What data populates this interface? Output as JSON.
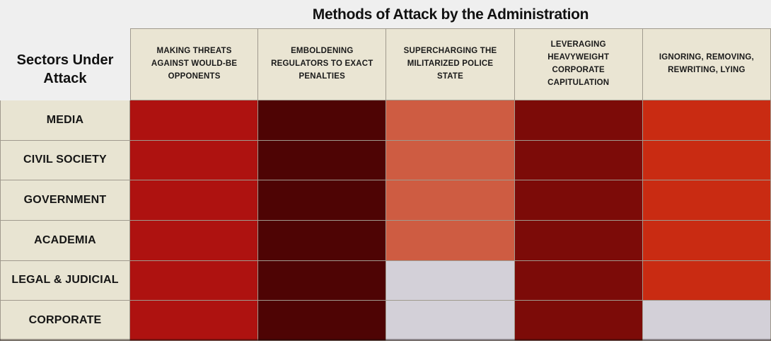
{
  "page": {
    "background": "#efefef"
  },
  "title": "Methods of Attack by the Administration",
  "corner_label": "Sectors Under Attack",
  "columns": [
    "MAKING THREATS AGAINST WOULD-BE OPPONENTS",
    "EMBOLDENING REGULATORS TO EXACT PENALTIES",
    "SUPERCHARGING THE MILITARIZED POLICE STATE",
    "LEVERAGING HEAVYWEIGHT CORPORATE CAPITULATION",
    "IGNORING, REMOVING, REWRITING, LYING"
  ],
  "rows": [
    "MEDIA",
    "CIVIL SOCIETY",
    "GOVERNMENT",
    "ACADEMIA",
    "LEGAL & JUDICIAL",
    "CORPORATE"
  ],
  "palette": {
    "bright_red": "#ae1210",
    "darkest_red": "#4e0404",
    "salmon": "#ce5c42",
    "dark_red": "#7c0b08",
    "orange_red": "#c92b12",
    "lavender": "#d3d0d8",
    "header_bg": "#eae5d3",
    "label_bg": "#e8e4d2",
    "border": "#a09a8e"
  },
  "chart_data": {
    "type": "heatmap",
    "title": "Methods of Attack by the Administration",
    "row_axis_label": "Sectors Under Attack",
    "columns": [
      "MAKING THREATS AGAINST WOULD-BE OPPONENTS",
      "EMBOLDENING REGULATORS TO EXACT PENALTIES",
      "SUPERCHARGING THE MILITARIZED POLICE STATE",
      "LEVERAGING HEAVYWEIGHT CORPORATE CAPITULATION",
      "IGNORING, REMOVING, REWRITING, LYING"
    ],
    "rows": [
      "MEDIA",
      "CIVIL SOCIETY",
      "GOVERNMENT",
      "ACADEMIA",
      "LEGAL & JUDICIAL",
      "CORPORATE"
    ],
    "cells": [
      [
        "bright_red",
        "darkest_red",
        "salmon",
        "dark_red",
        "orange_red"
      ],
      [
        "bright_red",
        "darkest_red",
        "salmon",
        "dark_red",
        "orange_red"
      ],
      [
        "bright_red",
        "darkest_red",
        "salmon",
        "dark_red",
        "orange_red"
      ],
      [
        "bright_red",
        "darkest_red",
        "salmon",
        "dark_red",
        "orange_red"
      ],
      [
        "bright_red",
        "darkest_red",
        "lavender",
        "dark_red",
        "orange_red"
      ],
      [
        "bright_red",
        "darkest_red",
        "lavender",
        "dark_red",
        "lavender"
      ]
    ],
    "legend_position": "none",
    "grid": true
  }
}
